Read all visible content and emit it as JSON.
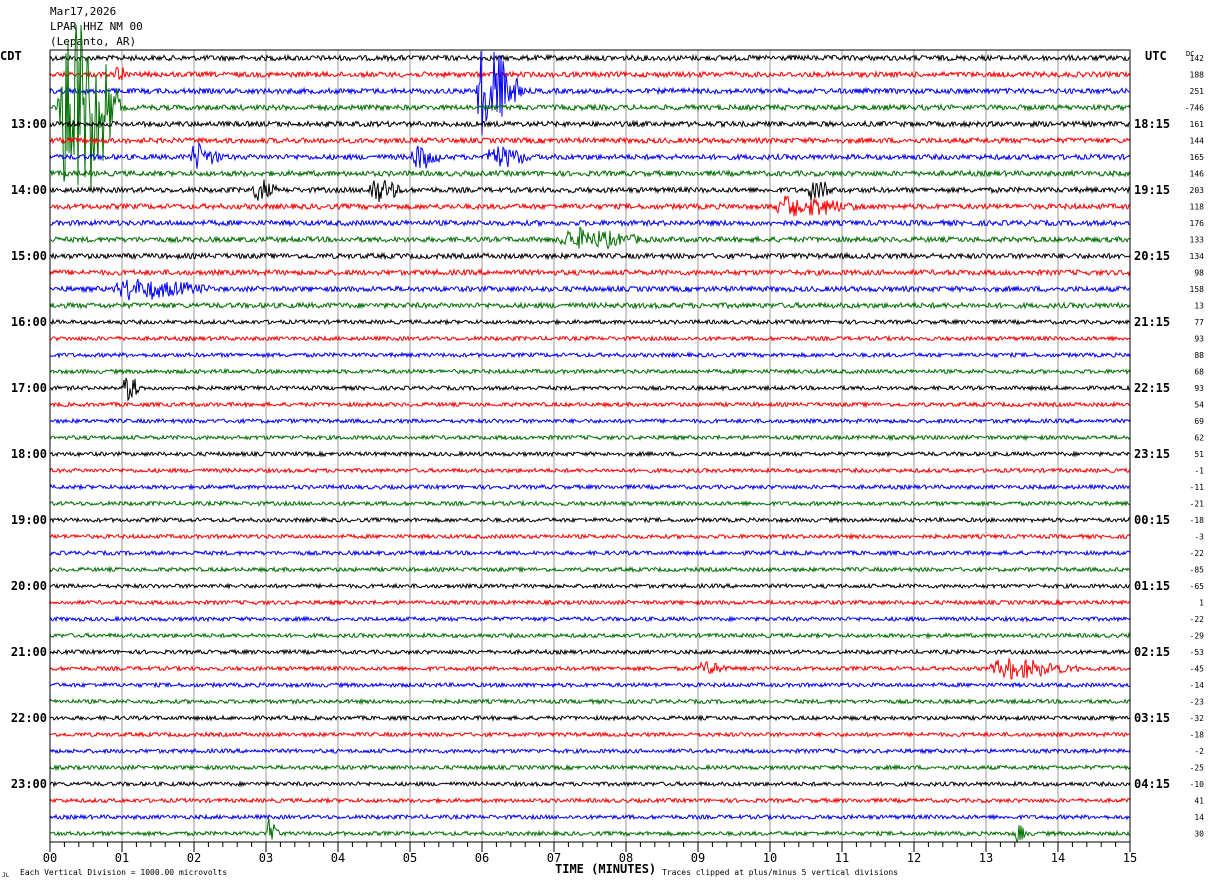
{
  "header": {
    "date": "Mar17,2026",
    "station": "LPAR HHZ NM 00",
    "location": "(Lepanto, AR)",
    "left_tz": "CDT",
    "right_tz": "UTC",
    "dc_label": "DC"
  },
  "footer": {
    "scale_note": "Each Vertical Division = 1000.00 microvolts",
    "xlabel": "TIME (MINUTES)",
    "clip_note": "Traces clipped at plus/minus 5 vertical divisions",
    "corner_mark": "JL"
  },
  "chart_data": {
    "type": "line",
    "title": "LPAR HHZ NM 00 (Lepanto, AR) Mar17,2026",
    "xlabel": "TIME (MINUTES)",
    "xlim": [
      0,
      15
    ],
    "x_ticks": [
      "00",
      "01",
      "02",
      "03",
      "04",
      "05",
      "06",
      "07",
      "08",
      "09",
      "10",
      "11",
      "12",
      "13",
      "14",
      "15"
    ],
    "trace_colors": [
      "#000000",
      "#ff0000",
      "#0000ff",
      "#007000"
    ],
    "traces_per_hour": 4,
    "left_hour_labels": [
      "13:00",
      "14:00",
      "15:00",
      "16:00",
      "17:00",
      "18:00",
      "19:00",
      "20:00",
      "21:00",
      "22:00",
      "23:00"
    ],
    "right_hour_labels": [
      "18:15",
      "19:15",
      "20:15",
      "21:15",
      "22:15",
      "23:15",
      "00:15",
      "01:15",
      "02:15",
      "03:15",
      "04:15"
    ],
    "dc_offsets": [
      "142",
      "188",
      "251",
      "-746",
      "161",
      "144",
      "165",
      "146",
      "203",
      "118",
      "176",
      "133",
      "134",
      "98",
      "158",
      "13",
      "77",
      "93",
      "88",
      "68",
      "93",
      "54",
      "69",
      "62",
      "51",
      "-1",
      "-11",
      "-21",
      "-18",
      "-3",
      "-22",
      "-85",
      "-65",
      "1",
      "-22",
      "-29",
      "-53",
      "-45",
      "-14",
      "-23",
      "-32",
      "-18",
      "-2",
      "-25",
      "-10",
      "41",
      "14",
      "30"
    ],
    "events": [
      {
        "trace": 3,
        "start_min": 0.1,
        "end_min": 1.0,
        "amplitude_div": 5
      },
      {
        "trace": 1,
        "start_min": 0.9,
        "end_min": 1.1,
        "amplitude_div": 0.5
      },
      {
        "trace": 2,
        "start_min": 5.9,
        "end_min": 6.6,
        "amplitude_div": 2.2
      },
      {
        "trace": 6,
        "start_min": 1.9,
        "end_min": 2.5,
        "amplitude_div": 0.6
      },
      {
        "trace": 6,
        "start_min": 5.0,
        "end_min": 5.5,
        "amplitude_div": 0.6
      },
      {
        "trace": 6,
        "start_min": 6.0,
        "end_min": 6.8,
        "amplitude_div": 0.6
      },
      {
        "trace": 8,
        "start_min": 2.8,
        "end_min": 3.2,
        "amplitude_div": 0.6
      },
      {
        "trace": 8,
        "start_min": 4.4,
        "end_min": 5.0,
        "amplitude_div": 0.6
      },
      {
        "trace": 8,
        "start_min": 10.5,
        "end_min": 11.0,
        "amplitude_div": 0.5
      },
      {
        "trace": 9,
        "start_min": 10.0,
        "end_min": 11.5,
        "amplitude_div": 0.5
      },
      {
        "trace": 11,
        "start_min": 7.0,
        "end_min": 8.5,
        "amplitude_div": 0.5
      },
      {
        "trace": 14,
        "start_min": 0.8,
        "end_min": 2.5,
        "amplitude_div": 0.5
      },
      {
        "trace": 20,
        "start_min": 1.0,
        "end_min": 1.3,
        "amplitude_div": 0.7
      },
      {
        "trace": 37,
        "start_min": 9.0,
        "end_min": 9.5,
        "amplitude_div": 0.4
      },
      {
        "trace": 37,
        "start_min": 13.0,
        "end_min": 14.5,
        "amplitude_div": 0.5
      },
      {
        "trace": 47,
        "start_min": 3.0,
        "end_min": 3.2,
        "amplitude_div": 0.6
      },
      {
        "trace": 47,
        "start_min": 13.4,
        "end_min": 13.6,
        "amplitude_div": 0.5
      }
    ]
  }
}
